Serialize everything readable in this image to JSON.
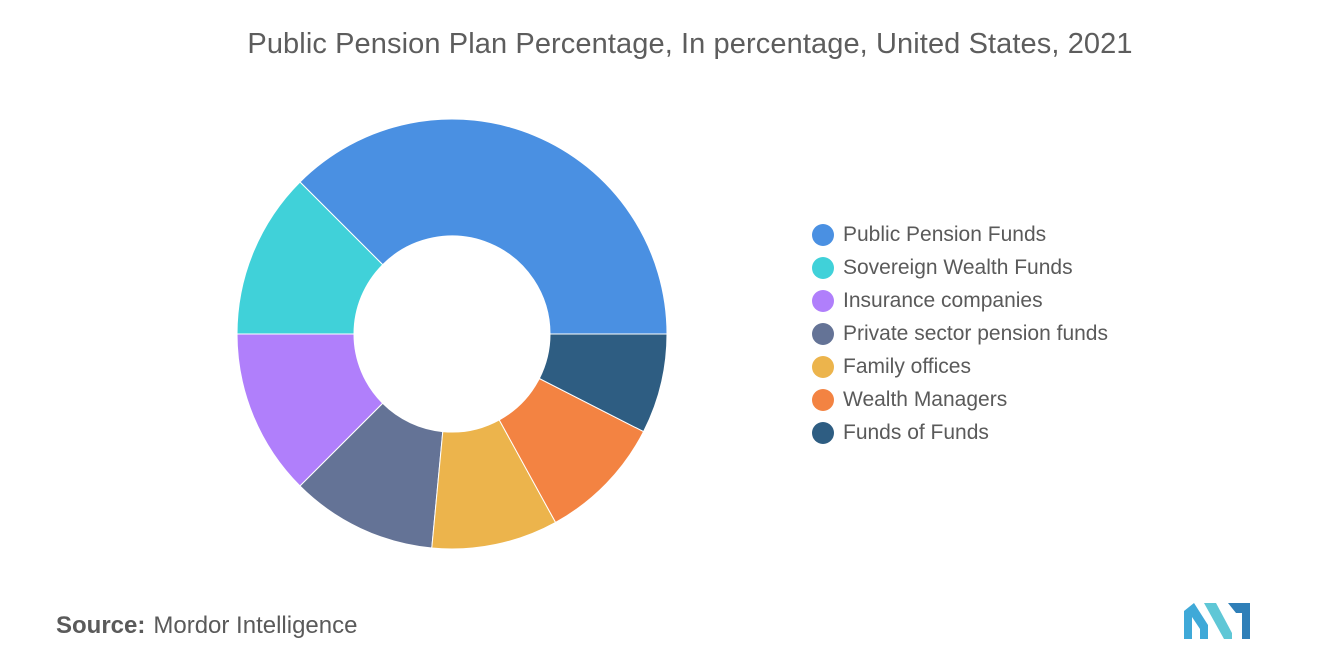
{
  "chart_data": {
    "type": "pie",
    "variant": "donut",
    "title": "Public Pension Plan Percentage, In percentage, United States, 2021",
    "categories": [
      "Public Pension Funds",
      "Sovereign Wealth Funds",
      "Insurance companies",
      "Private sector pension funds",
      "Family offices",
      "Wealth Managers",
      "Funds of Funds"
    ],
    "values": [
      37.5,
      12.5,
      12.5,
      11.0,
      9.5,
      9.5,
      7.5
    ],
    "colors": [
      "#4a90e2",
      "#40d1d9",
      "#b07ffb",
      "#647396",
      "#ecb44c",
      "#f38342",
      "#2e5d82"
    ],
    "legend_position": "right",
    "grid": false
  },
  "source": {
    "label": "Source:",
    "text": "Mordor Intelligence"
  }
}
